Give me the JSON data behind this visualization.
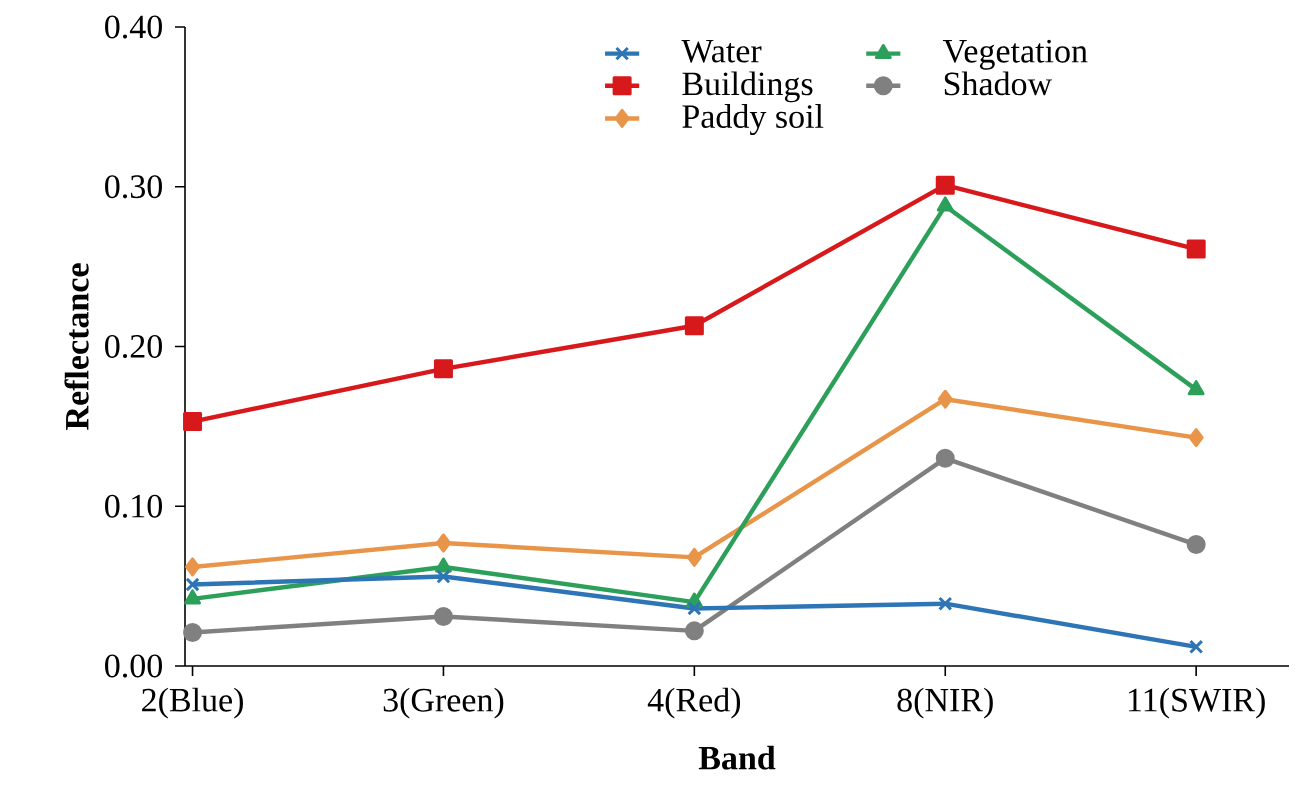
{
  "chart_data": {
    "type": "line",
    "xlabel": "Band",
    "ylabel": "Reflectance",
    "categories": [
      "2(Blue)",
      "3(Green)",
      "4(Red)",
      "8(NIR)",
      "11(SWIR)"
    ],
    "series": [
      {
        "name": "Water",
        "color": "#2e75b6",
        "marker": "cross",
        "values": [
          0.051,
          0.056,
          0.036,
          0.039,
          0.012
        ]
      },
      {
        "name": "Vegetation",
        "color": "#2ca05a",
        "marker": "triangle",
        "values": [
          0.042,
          0.062,
          0.04,
          0.288,
          0.173
        ]
      },
      {
        "name": "Buildings",
        "color": "#d7191c",
        "marker": "square",
        "values": [
          0.153,
          0.186,
          0.213,
          0.301,
          0.261
        ]
      },
      {
        "name": "Shadow",
        "color": "#808080",
        "marker": "circle",
        "values": [
          0.021,
          0.031,
          0.022,
          0.13,
          0.076
        ]
      },
      {
        "name": "Paddy soil",
        "color": "#e8954a",
        "marker": "diamond",
        "values": [
          0.062,
          0.077,
          0.068,
          0.167,
          0.143
        ]
      }
    ],
    "ylim": [
      0,
      0.4
    ],
    "yticks": [
      {
        "value": 0,
        "label": "0.00"
      },
      {
        "value": 0.1,
        "label": "0.10"
      },
      {
        "value": 0.2,
        "label": "0.20"
      },
      {
        "value": 0.3,
        "label": "0.30"
      },
      {
        "value": 0.4,
        "label": "0.40"
      }
    ],
    "grid": false,
    "legend": "top",
    "line_style": "solid"
  }
}
